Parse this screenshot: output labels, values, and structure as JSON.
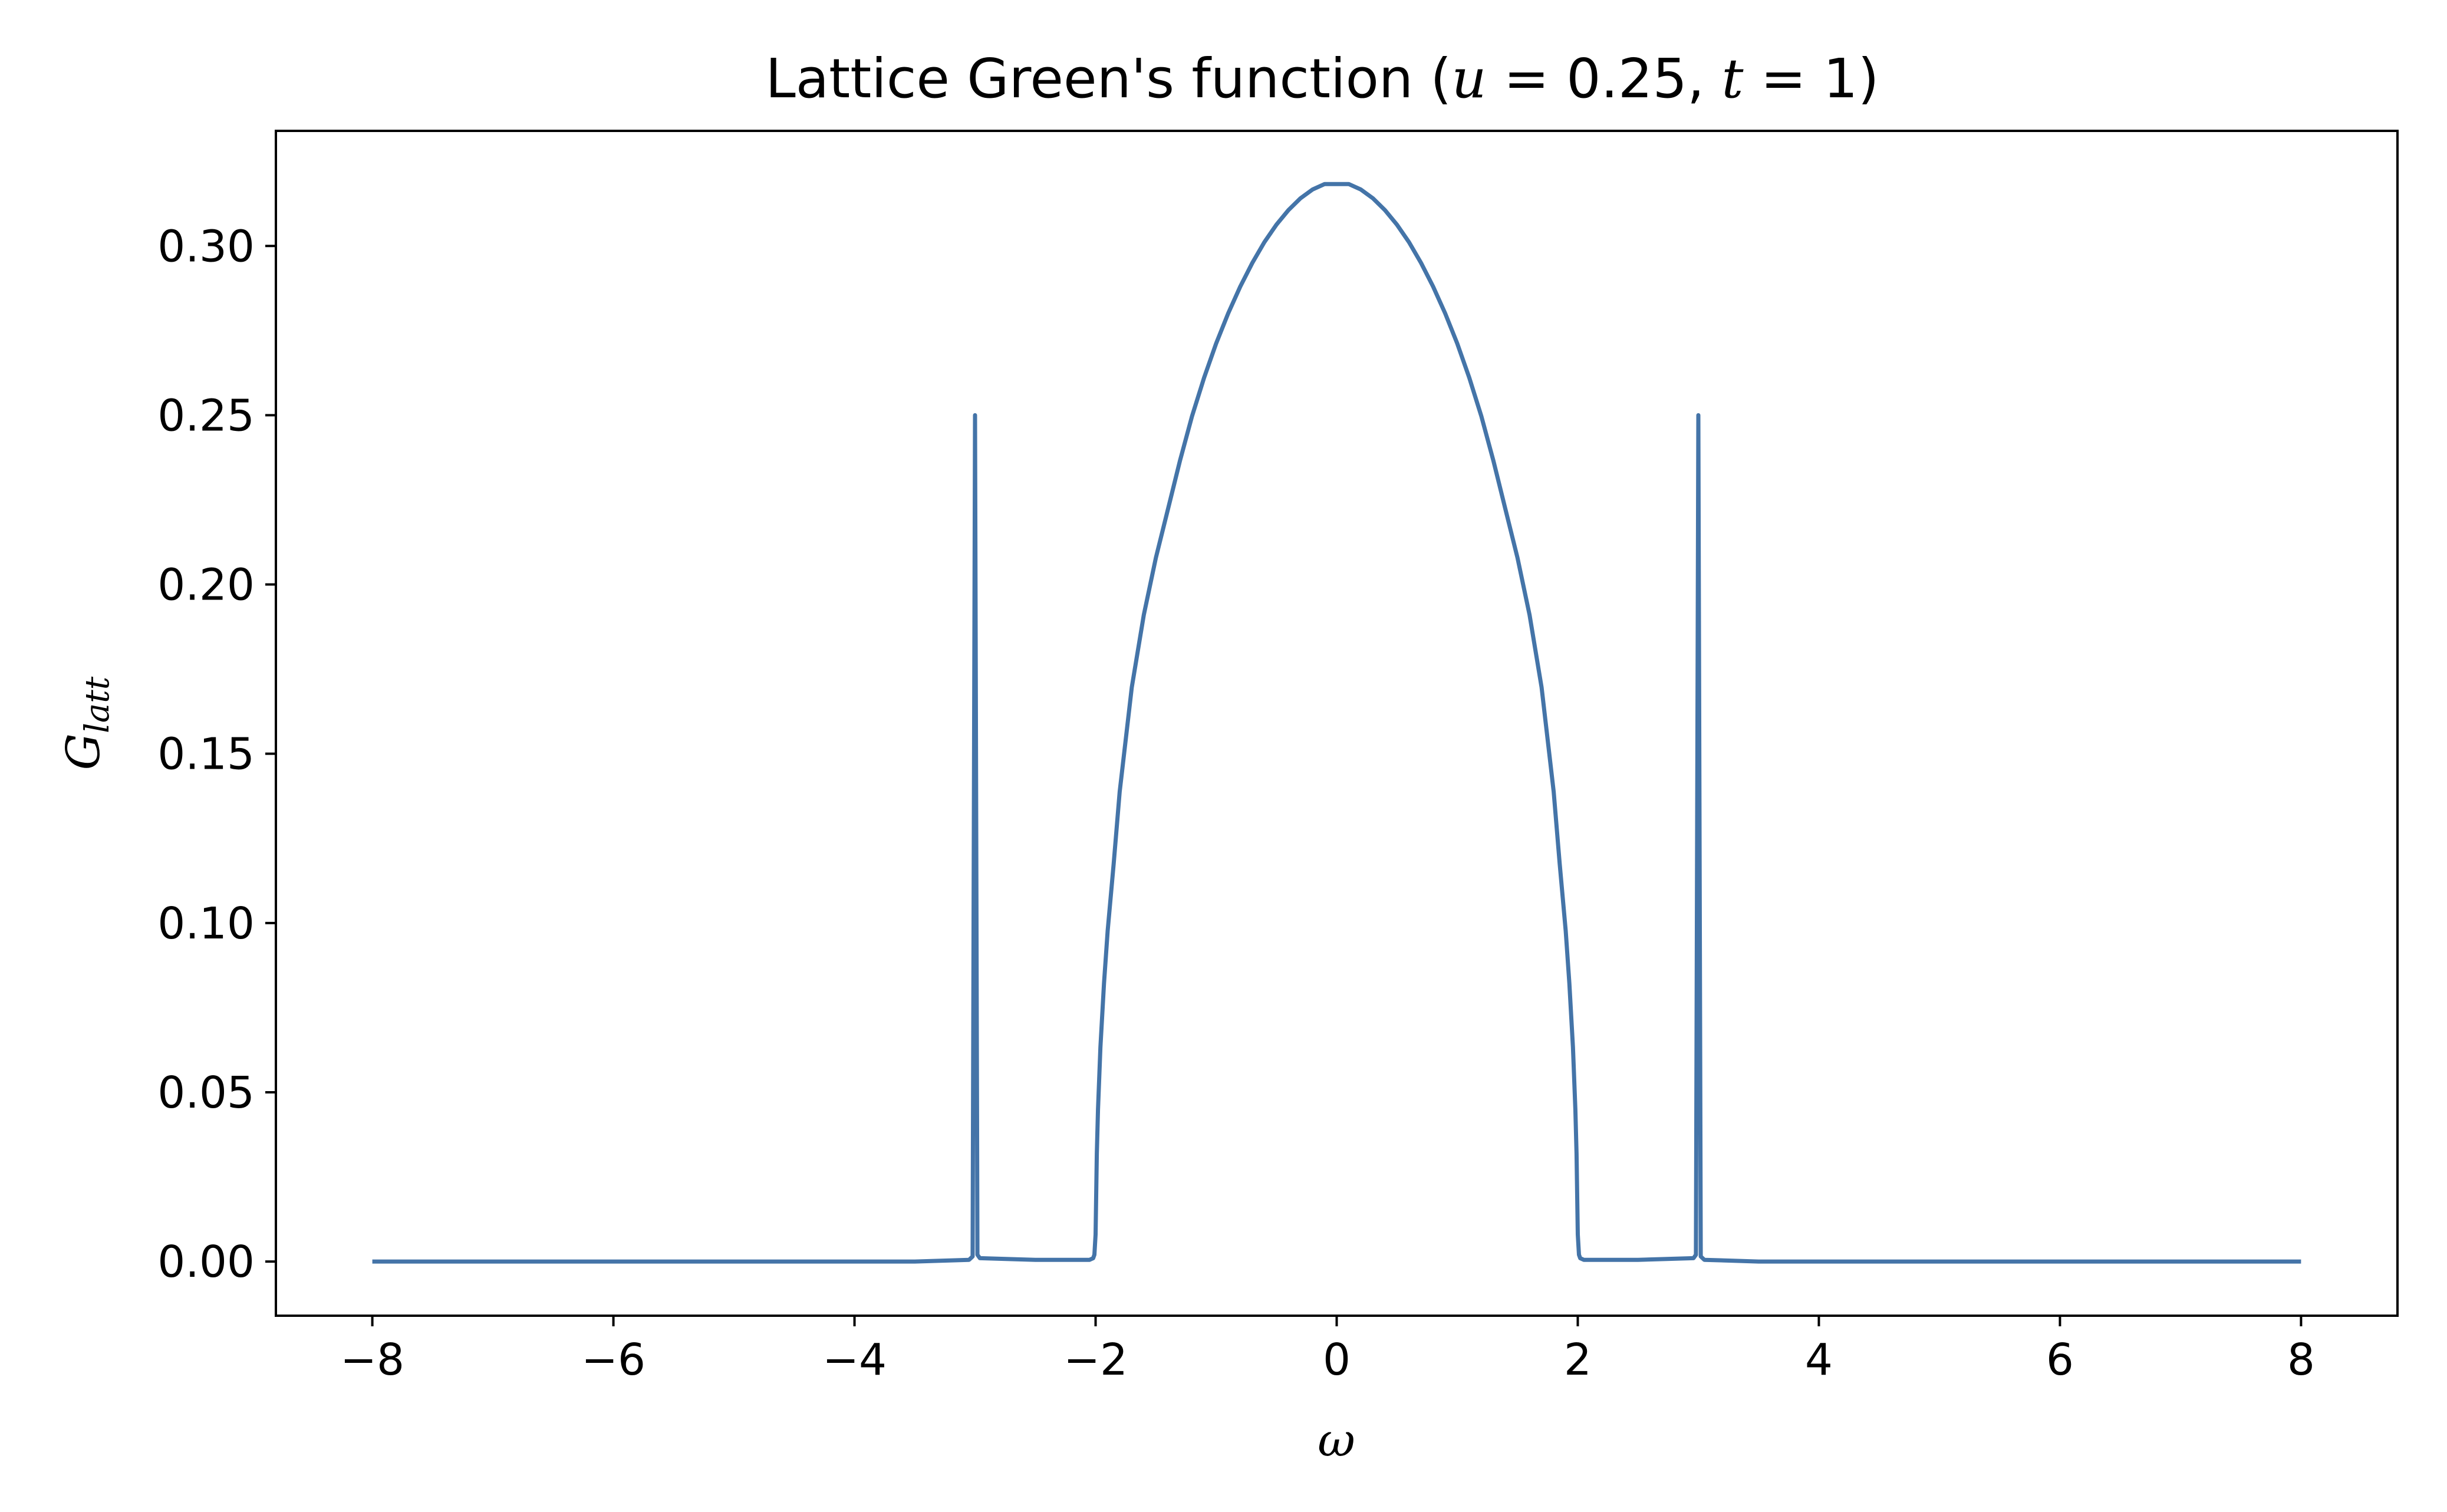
{
  "chart_data": {
    "type": "line",
    "title": {
      "prefix": "Lattice Green's function (",
      "u_symbol": "u",
      "u_value": " = 0.25, ",
      "t_symbol": "t",
      "t_value": " = 1)"
    },
    "xlabel": "ω",
    "ylabel": {
      "base": "G",
      "subscript": "latt"
    },
    "xlim": [
      -8.8,
      8.8
    ],
    "ylim": [
      -0.016,
      0.334
    ],
    "x_ticks": [
      -8,
      -6,
      -4,
      -2,
      0,
      2,
      4,
      6,
      8
    ],
    "x_tick_labels": [
      "−8",
      "−6",
      "−4",
      "−2",
      "0",
      "2",
      "4",
      "6",
      "8"
    ],
    "y_ticks": [
      0.0,
      0.05,
      0.1,
      0.15,
      0.2,
      0.25,
      0.3
    ],
    "y_tick_labels": [
      "0.00",
      "0.05",
      "0.10",
      "0.15",
      "0.20",
      "0.25",
      "0.30"
    ],
    "grid": false,
    "legend": "none",
    "colors": {
      "line": "#4474a8",
      "axes": "#000000",
      "background": "#ffffff"
    },
    "series": [
      {
        "x": [
          -8.0,
          -7.0,
          -6.0,
          -5.0,
          -4.0,
          -3.5,
          -3.05,
          -3.02,
          -3.0,
          -2.98,
          -2.96,
          -2.5,
          -2.05,
          -2.02,
          -2.01,
          -2.0,
          -1.99,
          -1.98,
          -1.96,
          -1.93,
          -1.9,
          -1.85,
          -1.8,
          -1.7,
          -1.6,
          -1.5,
          -1.4,
          -1.3,
          -1.2,
          -1.1,
          -1.0,
          -0.9,
          -0.8,
          -0.7,
          -0.6,
          -0.5,
          -0.4,
          -0.3,
          -0.2,
          -0.1,
          0.0,
          0.1,
          0.2,
          0.3,
          0.4,
          0.5,
          0.6,
          0.7,
          0.8,
          0.9,
          1.0,
          1.1,
          1.2,
          1.3,
          1.4,
          1.5,
          1.6,
          1.7,
          1.8,
          1.85,
          1.9,
          1.93,
          1.96,
          1.98,
          1.99,
          2.0,
          2.01,
          2.02,
          2.05,
          2.5,
          2.96,
          2.98,
          3.0,
          3.02,
          3.05,
          3.5,
          4.0,
          5.0,
          6.0,
          7.0,
          8.0
        ],
        "y": [
          0.0,
          0.0,
          0.0,
          0.0,
          0.0,
          0.0,
          0.0005,
          0.0015,
          0.25,
          0.002,
          0.001,
          0.0005,
          0.0005,
          0.001,
          0.002,
          0.008,
          0.0318,
          0.0449,
          0.0633,
          0.0822,
          0.0977,
          0.1175,
          0.1388,
          0.1696,
          0.191,
          0.2079,
          0.2222,
          0.2366,
          0.2497,
          0.2611,
          0.2712,
          0.2801,
          0.288,
          0.295,
          0.3011,
          0.3063,
          0.3106,
          0.3141,
          0.3167,
          0.3183,
          0.3183,
          0.3183,
          0.3167,
          0.3141,
          0.3106,
          0.3063,
          0.3011,
          0.295,
          0.288,
          0.2801,
          0.2712,
          0.2611,
          0.2497,
          0.2366,
          0.2222,
          0.2079,
          0.191,
          0.1696,
          0.1388,
          0.1175,
          0.0977,
          0.0822,
          0.0633,
          0.0449,
          0.0318,
          0.008,
          0.002,
          0.001,
          0.0005,
          0.0005,
          0.001,
          0.002,
          0.25,
          0.0015,
          0.0005,
          0.0,
          0.0,
          0.0,
          0.0,
          0.0,
          0.0
        ]
      }
    ]
  }
}
